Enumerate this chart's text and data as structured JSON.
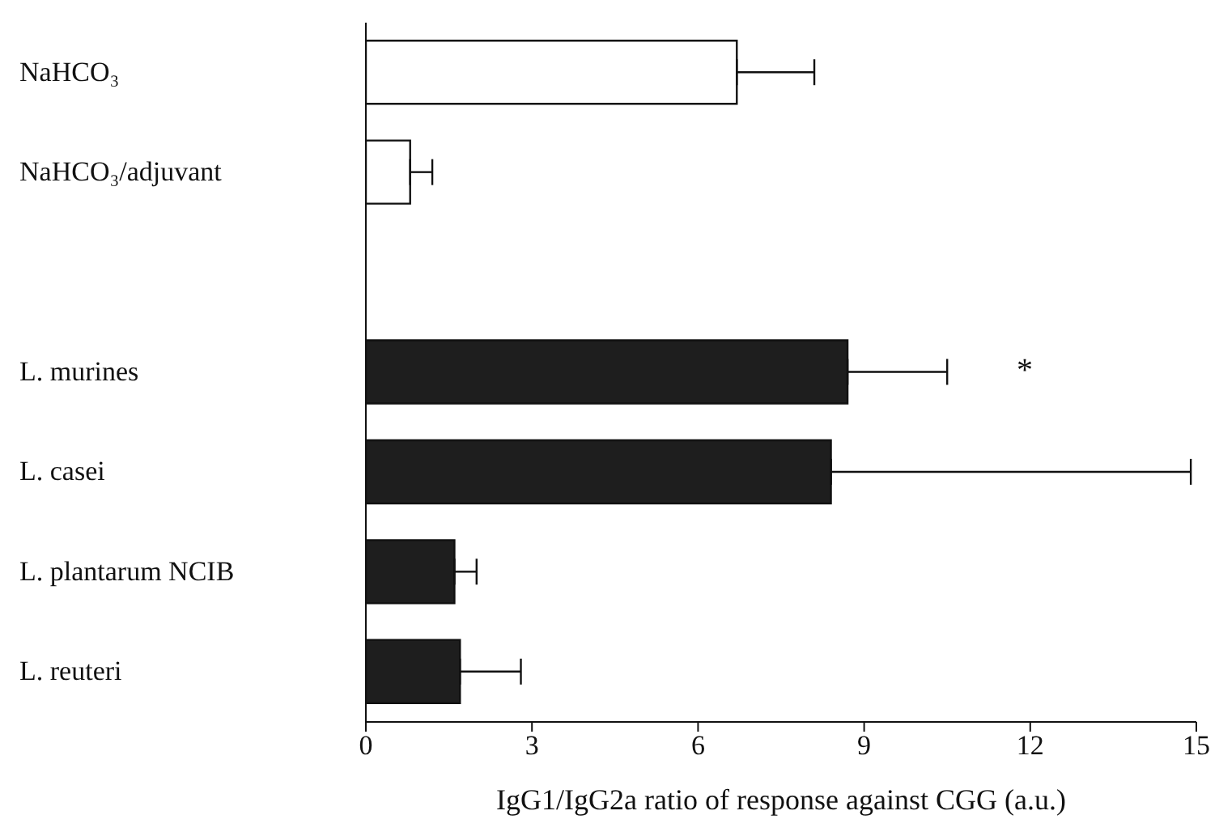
{
  "chart_data": {
    "type": "bar",
    "orientation": "horizontal",
    "categories": [
      "NaHCO₃",
      "NaHCO₃/adjuvant",
      null,
      "L. murines",
      "L. casei",
      "L. plantarum NCIB",
      "L. reuteri"
    ],
    "values": [
      6.7,
      0.8,
      null,
      8.7,
      8.4,
      1.6,
      1.7
    ],
    "colors": [
      "#ffffff",
      "#ffffff",
      "#ffffff",
      "#1e1e1e",
      "#1e1e1e",
      "#1e1e1e",
      "#1e1e1e"
    ],
    "errors": [
      [
        6.7,
        8.1
      ],
      [
        0.8,
        1.2
      ],
      null,
      [
        8.7,
        10.5
      ],
      [
        8.4,
        14.9
      ],
      [
        1.6,
        2.0
      ],
      [
        1.7,
        2.8
      ]
    ],
    "xlim": [
      0,
      15
    ],
    "xticks": [
      0,
      3,
      6,
      9,
      12,
      15
    ],
    "xlabel": "IgG1/IgG2a ratio of response against CGG (a.u.)",
    "annotations": [
      "*"
    ]
  }
}
